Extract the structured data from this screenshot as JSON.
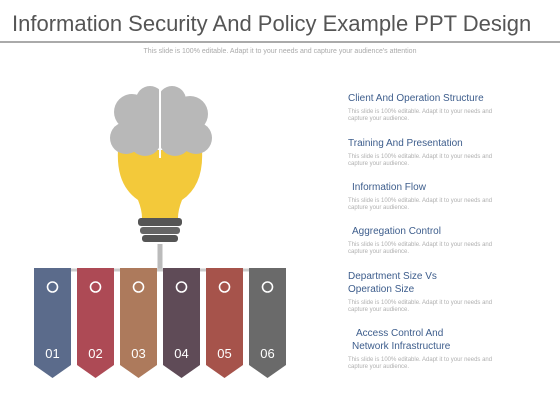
{
  "header": {
    "title": "Information Security And Policy Example PPT Design",
    "subtitle": "This slide is 100% editable. Adapt it to your needs and capture your audience's attention"
  },
  "banners": [
    {
      "number": "01",
      "color": "#5b6b8b"
    },
    {
      "number": "02",
      "color": "#ad4a55"
    },
    {
      "number": "03",
      "color": "#ad7a5c"
    },
    {
      "number": "04",
      "color": "#5f4b57"
    },
    {
      "number": "05",
      "color": "#a6534b"
    },
    {
      "number": "06",
      "color": "#6a6a6a"
    }
  ],
  "items": [
    {
      "label": [
        "Client And Operation Structure"
      ],
      "body": [
        "This slide is 100% editable. Adapt it to your needs and",
        "capture your audience."
      ]
    },
    {
      "label": [
        "Training And Presentation"
      ],
      "body": [
        "This slide is 100% editable. Adapt it to your needs and",
        "capture your audience."
      ]
    },
    {
      "label": [
        "Information Flow"
      ],
      "body": [
        "This slide is 100% editable. Adapt it to your needs and",
        "capture your audience."
      ]
    },
    {
      "label": [
        "Aggregation Control"
      ],
      "body": [
        "This slide is 100% editable. Adapt it to your needs and",
        "capture your audience."
      ]
    },
    {
      "label": [
        "Department Size Vs",
        "Operation Size"
      ],
      "body": [
        "This slide is 100% editable. Adapt it to your needs and",
        "capture your audience."
      ]
    },
    {
      "label": [
        "Access Control And",
        "Network Infrastructure"
      ],
      "body": [
        "This slide is 100% editable. Adapt it to your needs and",
        "capture your audience."
      ]
    }
  ]
}
